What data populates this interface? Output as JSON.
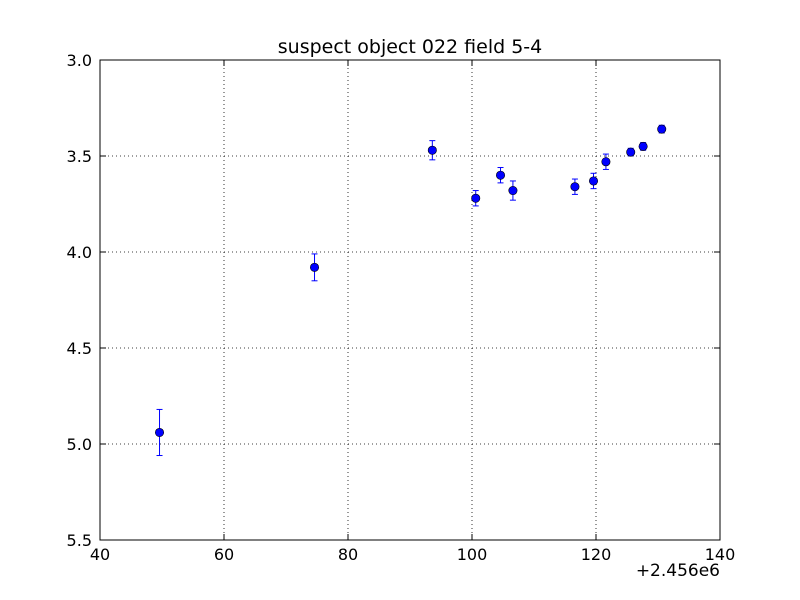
{
  "chart_data": {
    "type": "scatter",
    "title": "suspect object 022 field 5-4",
    "xlabel": "",
    "ylabel": "",
    "x_offset_label": "+2.456e6",
    "xlim": [
      40,
      140
    ],
    "ylim": [
      5.5,
      3.0
    ],
    "y_inverted": true,
    "grid": true,
    "x_ticks": [
      40,
      60,
      80,
      100,
      120,
      140
    ],
    "x_tick_labels": [
      "40",
      "60",
      "80",
      "100",
      "120",
      "140"
    ],
    "y_ticks": [
      3.0,
      3.5,
      4.0,
      4.5,
      5.0,
      5.5
    ],
    "y_tick_labels": [
      "3.0",
      "3.5",
      "4.0",
      "4.5",
      "5.0",
      "5.5"
    ],
    "marker_color": "#0000ff",
    "series": [
      {
        "points": [
          {
            "x": 49.6,
            "y": 4.94,
            "err": 0.12
          },
          {
            "x": 74.6,
            "y": 4.08,
            "err": 0.07
          },
          {
            "x": 93.6,
            "y": 3.47,
            "err": 0.05
          },
          {
            "x": 100.6,
            "y": 3.72,
            "err": 0.04
          },
          {
            "x": 104.6,
            "y": 3.6,
            "err": 0.04
          },
          {
            "x": 106.6,
            "y": 3.68,
            "err": 0.05
          },
          {
            "x": 116.6,
            "y": 3.66,
            "err": 0.04
          },
          {
            "x": 119.6,
            "y": 3.63,
            "err": 0.04
          },
          {
            "x": 121.6,
            "y": 3.53,
            "err": 0.04
          },
          {
            "x": 125.6,
            "y": 3.48,
            "err": 0.02
          },
          {
            "x": 127.6,
            "y": 3.45,
            "err": 0.02
          },
          {
            "x": 130.6,
            "y": 3.36,
            "err": 0.02
          }
        ]
      }
    ]
  }
}
